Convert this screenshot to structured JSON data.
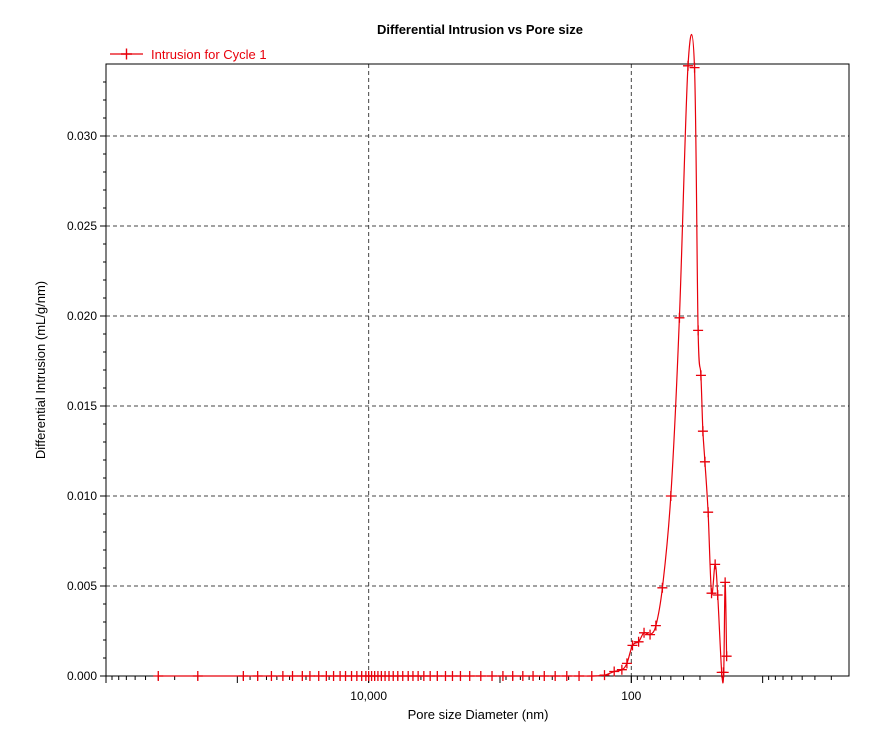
{
  "chart_data": {
    "type": "line",
    "title": "Differential Intrusion vs Pore size",
    "xlabel": "Pore size Diameter (nm)",
    "ylabel": "Differential Intrusion (mL/g/nm)",
    "x_scale": "log",
    "x_reversed": true,
    "xlim": [
      1000000,
      2.2
    ],
    "ylim": [
      0,
      0.034
    ],
    "x_tick_labels": [
      {
        "value": 10000,
        "label": "10,000"
      },
      {
        "value": 100,
        "label": "100"
      }
    ],
    "y_tick_labels": [
      {
        "value": 0.0,
        "label": "0.000"
      },
      {
        "value": 0.005,
        "label": "0.005"
      },
      {
        "value": 0.01,
        "label": "0.010"
      },
      {
        "value": 0.015,
        "label": "0.015"
      },
      {
        "value": 0.02,
        "label": "0.020"
      },
      {
        "value": 0.025,
        "label": "0.025"
      },
      {
        "value": 0.03,
        "label": "0.030"
      }
    ],
    "grid": true,
    "legend_position": "top-left",
    "series": [
      {
        "name": "Intrusion for Cycle 1",
        "color": "#e8000b",
        "marker": "plus",
        "points": [
          [
            400000,
            0
          ],
          [
            200000,
            0
          ],
          [
            90000,
            0
          ],
          [
            70000,
            0
          ],
          [
            55000,
            0
          ],
          [
            45000,
            0
          ],
          [
            38000,
            0
          ],
          [
            32000,
            0
          ],
          [
            28000,
            0
          ],
          [
            24000,
            0
          ],
          [
            21000,
            0
          ],
          [
            18500,
            0
          ],
          [
            16500,
            0
          ],
          [
            15000,
            0
          ],
          [
            13500,
            0
          ],
          [
            12300,
            0
          ],
          [
            11300,
            0
          ],
          [
            10500,
            0
          ],
          [
            10000,
            0
          ],
          [
            9500,
            0
          ],
          [
            9000,
            0
          ],
          [
            8500,
            0
          ],
          [
            8000,
            0
          ],
          [
            7500,
            0
          ],
          [
            7000,
            0
          ],
          [
            6500,
            0
          ],
          [
            6000,
            0
          ],
          [
            5500,
            0
          ],
          [
            5000,
            0
          ],
          [
            4600,
            0
          ],
          [
            4200,
            0
          ],
          [
            3800,
            0
          ],
          [
            3400,
            0
          ],
          [
            3000,
            0
          ],
          [
            2600,
            0
          ],
          [
            2300,
            0
          ],
          [
            2000,
            0
          ],
          [
            1700,
            0
          ],
          [
            1400,
            0
          ],
          [
            1150,
            0
          ],
          [
            950,
            0
          ],
          [
            800,
            0
          ],
          [
            670,
            0
          ],
          [
            560,
            0
          ],
          [
            460,
            0
          ],
          [
            380,
            0
          ],
          [
            310,
            0
          ],
          [
            250,
            0
          ],
          [
            200,
            0
          ],
          [
            160,
            5e-05
          ],
          [
            135,
            0.00025
          ],
          [
            118,
            0.00035
          ],
          [
            108,
            0.0007
          ],
          [
            98,
            0.0017
          ],
          [
            88,
            0.0019
          ],
          [
            80,
            0.0024
          ],
          [
            72,
            0.0023
          ],
          [
            65,
            0.0028
          ],
          [
            58,
            0.0049
          ],
          [
            50,
            0.01
          ],
          [
            43,
            0.0199
          ],
          [
            37,
            0.0339
          ],
          [
            33,
            0.0338
          ],
          [
            31,
            0.0192
          ],
          [
            29.5,
            0.0167
          ],
          [
            28.5,
            0.0136
          ],
          [
            27.5,
            0.0119
          ],
          [
            26,
            0.0091
          ],
          [
            24.5,
            0.0046
          ],
          [
            23,
            0.0062
          ],
          [
            22,
            0.0045
          ],
          [
            20.5,
            0.0002
          ],
          [
            19.8,
            0.0002
          ],
          [
            19.3,
            0.0052
          ],
          [
            18.8,
            0.0011
          ]
        ]
      }
    ]
  }
}
